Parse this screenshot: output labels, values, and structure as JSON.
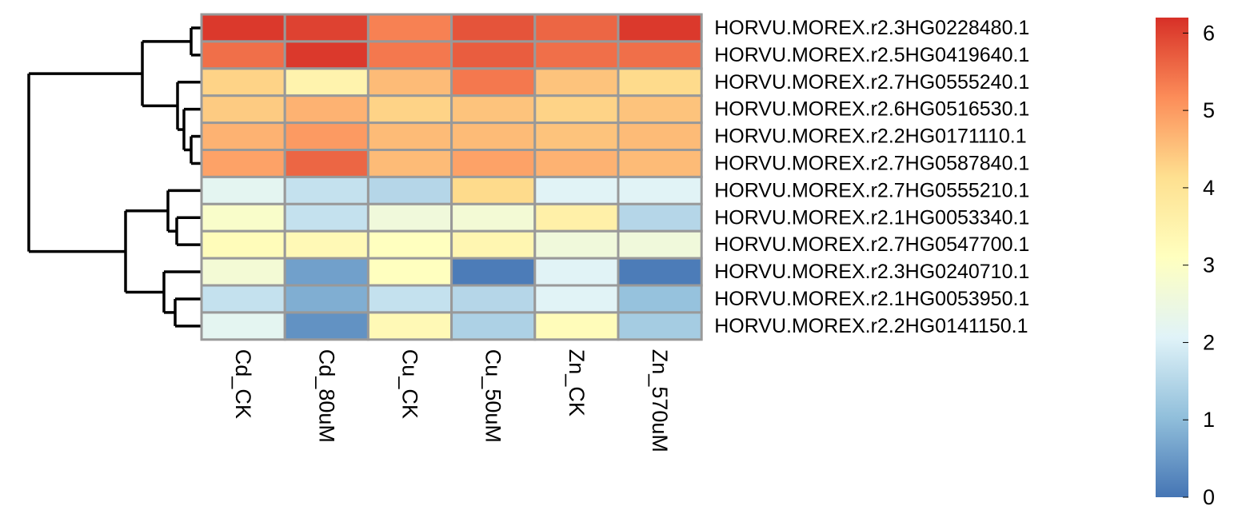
{
  "chart_data": {
    "type": "heatmap",
    "title": "",
    "columns": [
      "Cd_CK",
      "Cd_80uM",
      "Cu_CK",
      "Cu_50uM",
      "Zn_CK",
      "Zn_570uM"
    ],
    "rows": [
      "HORVU.MOREX.r2.3HG0228480.1",
      "HORVU.MOREX.r2.5HG0419640.1",
      "HORVU.MOREX.r2.7HG0555240.1",
      "HORVU.MOREX.r2.6HG0516530.1",
      "HORVU.MOREX.r2.2HG0171110.1",
      "HORVU.MOREX.r2.7HG0587840.1",
      "HORVU.MOREX.r2.7HG0555210.1",
      "HORVU.MOREX.r2.1HG0053340.1",
      "HORVU.MOREX.r2.7HG0547700.1",
      "HORVU.MOREX.r2.3HG0240710.1",
      "HORVU.MOREX.r2.1HG0053950.1",
      "HORVU.MOREX.r2.2HG0141150.1"
    ],
    "values": [
      [
        6.1,
        6.0,
        5.3,
        5.8,
        5.6,
        6.1
      ],
      [
        5.5,
        6.1,
        5.4,
        5.7,
        5.5,
        5.5
      ],
      [
        4.3,
        3.5,
        4.6,
        5.4,
        4.5,
        4.2
      ],
      [
        4.4,
        4.7,
        4.3,
        4.5,
        4.3,
        4.5
      ],
      [
        4.7,
        5.0,
        4.6,
        4.6,
        4.5,
        4.6
      ],
      [
        4.9,
        5.6,
        4.6,
        4.9,
        4.7,
        4.6
      ],
      [
        2.2,
        1.7,
        1.5,
        4.2,
        2.1,
        2.1
      ],
      [
        2.9,
        1.7,
        2.6,
        2.7,
        3.6,
        1.5
      ],
      [
        3.2,
        3.3,
        3.1,
        3.4,
        2.6,
        2.6
      ],
      [
        2.7,
        0.6,
        3.1,
        0.1,
        2.1,
        0.1
      ],
      [
        1.7,
        0.8,
        1.7,
        1.5,
        2.1,
        1.1
      ],
      [
        2.2,
        0.4,
        3.3,
        1.4,
        3.2,
        1.3
      ]
    ],
    "color_scale": {
      "min": 0,
      "max": 6.2,
      "colors": [
        "#4575b4",
        "#91bfdb",
        "#e0f3f8",
        "#ffffbf",
        "#fee090",
        "#fc8d59",
        "#d73027"
      ],
      "ticks": [
        "0",
        "1",
        "2",
        "3",
        "4",
        "5",
        "6"
      ]
    },
    "dendrogram": "rows"
  }
}
